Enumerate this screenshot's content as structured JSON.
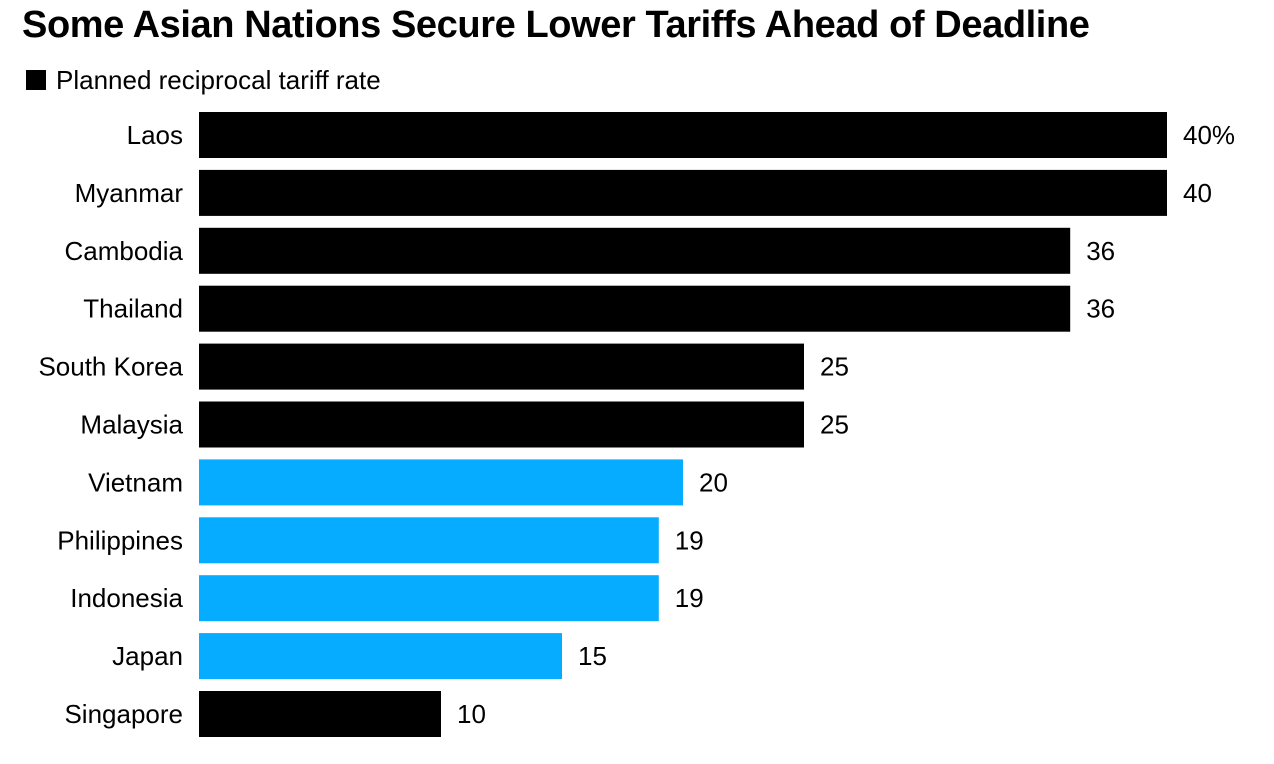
{
  "chart_data": {
    "type": "bar",
    "orientation": "horizontal",
    "title": "Some Asian Nations Secure Lower Tariffs Ahead of Deadline",
    "legend": [
      {
        "label": "Planned reciprocal tariff rate",
        "color": "#000000"
      }
    ],
    "categories": [
      "Laos",
      "Myanmar",
      "Cambodia",
      "Thailand",
      "South Korea",
      "Malaysia",
      "Vietnam",
      "Philippines",
      "Indonesia",
      "Japan",
      "Singapore"
    ],
    "values": [
      40,
      40,
      36,
      36,
      25,
      25,
      20,
      19,
      19,
      15,
      10
    ],
    "value_labels": [
      "40%",
      "40",
      "36",
      "36",
      "25",
      "25",
      "20",
      "19",
      "19",
      "15",
      "10"
    ],
    "bar_colors": [
      "#000000",
      "#000000",
      "#000000",
      "#000000",
      "#000000",
      "#000000",
      "#06acff",
      "#06acff",
      "#06acff",
      "#06acff",
      "#000000"
    ],
    "xlim": [
      0,
      40
    ],
    "grid": false
  }
}
